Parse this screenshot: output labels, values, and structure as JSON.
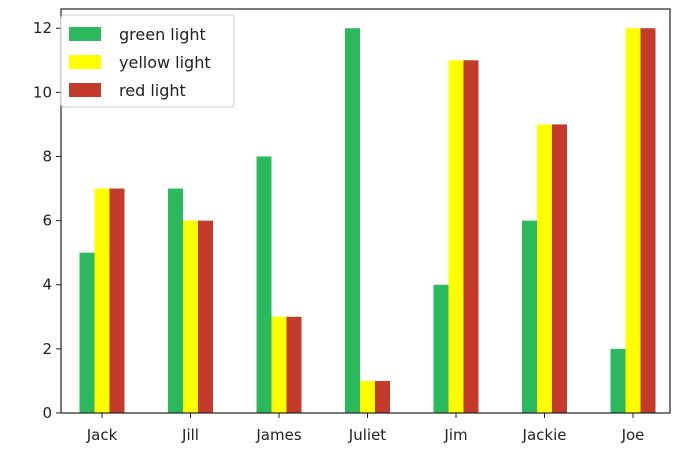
{
  "chart_data": {
    "type": "bar",
    "title": "",
    "xlabel": "",
    "ylabel": "",
    "categories": [
      "Jack",
      "Jill",
      "James",
      "Juliet",
      "Jim",
      "Jackie",
      "Joe"
    ],
    "series": [
      {
        "name": "green light",
        "color": "#2cb95e",
        "values": [
          5,
          7,
          8,
          12,
          4,
          6,
          2
        ]
      },
      {
        "name": "yellow light",
        "color": "#ffff00",
        "values": [
          7,
          6,
          3,
          1,
          11,
          9,
          12
        ]
      },
      {
        "name": "red light",
        "color": "#c53b2b",
        "values": [
          7,
          6,
          3,
          1,
          11,
          9,
          12
        ]
      }
    ],
    "ylim": [
      0,
      12.6
    ],
    "yticks": [
      "0",
      "2",
      "4",
      "6",
      "8",
      "10",
      "12"
    ],
    "legend": "top-left",
    "grid": false
  }
}
